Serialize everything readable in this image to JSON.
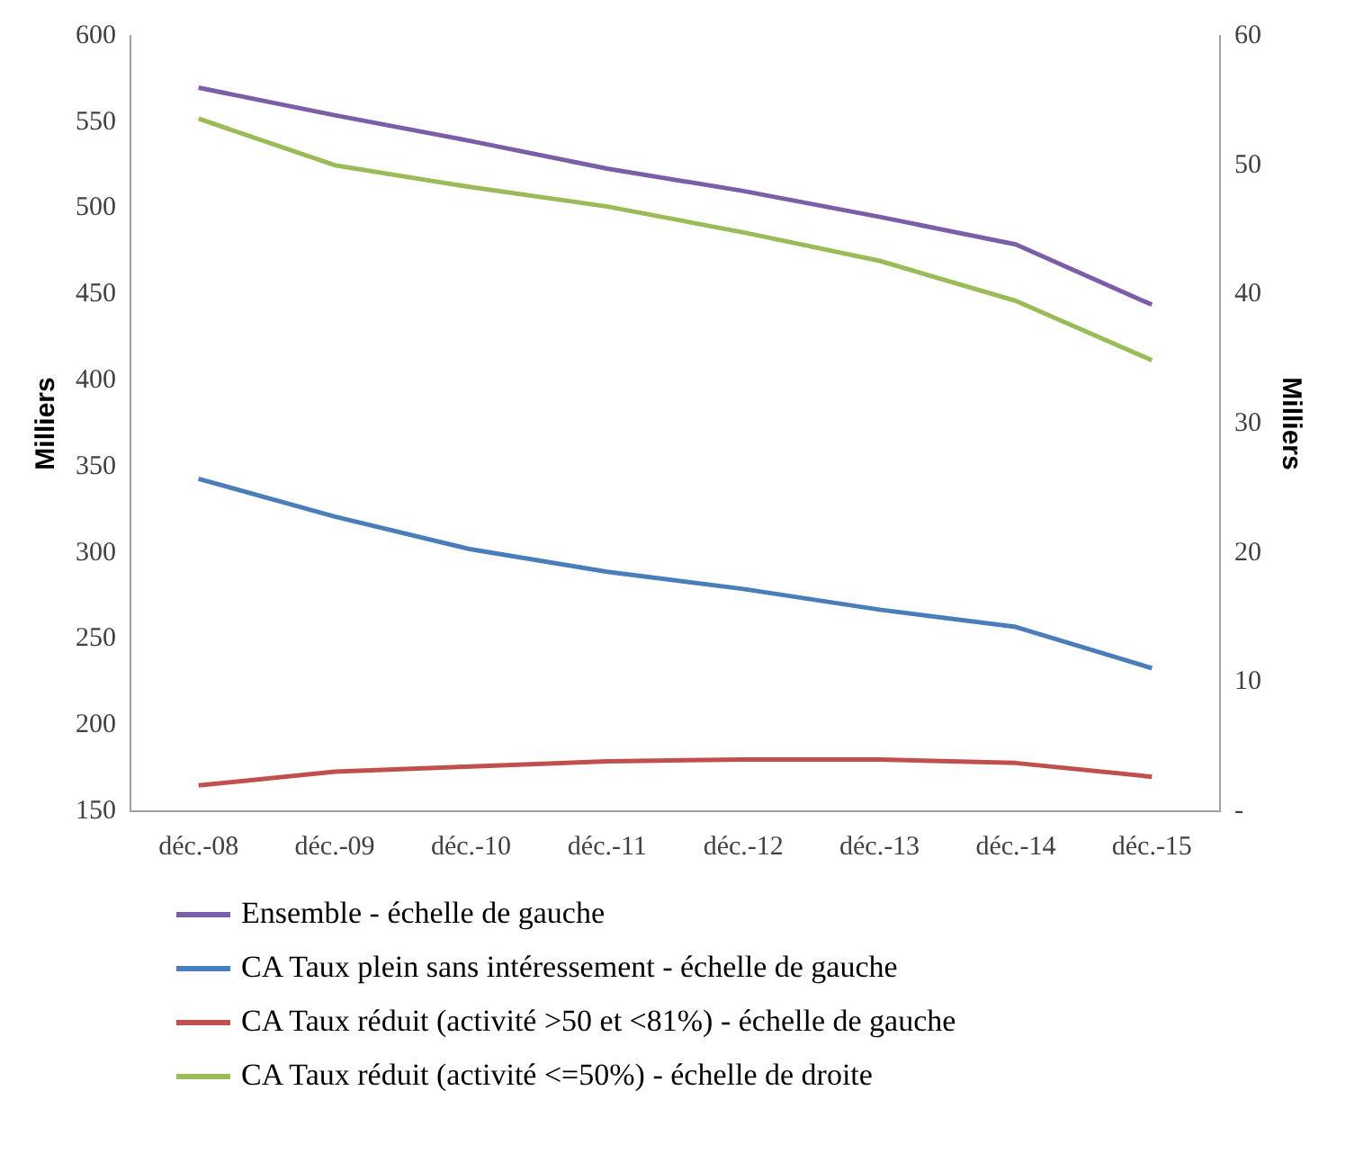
{
  "chart_data": {
    "type": "line",
    "ylabel": "Milliers",
    "y2label": "Milliers",
    "categories": [
      "déc.-08",
      "déc.-09",
      "déc.-10",
      "déc.-11",
      "déc.-12",
      "déc.-13",
      "déc.-14",
      "déc.-15"
    ],
    "series": [
      {
        "name": "Ensemble - échelle de gauche",
        "color": "#7b5ea7",
        "values": [
          570,
          554,
          539,
          523,
          510,
          495,
          479,
          444
        ]
      },
      {
        "name": "CA Taux plein sans intéressement - échelle de gauche",
        "color": "#4a7ebb",
        "values": [
          343,
          321,
          302,
          289,
          279,
          267,
          257,
          233
        ]
      },
      {
        "name": "CA Taux réduit (activité >50 et <81%) - échelle de gauche",
        "color": "#c0504d",
        "values": [
          165,
          173,
          176,
          179,
          180,
          180,
          178,
          170
        ]
      },
      {
        "name": "CA Taux réduit (activité <=50%) - échelle de droite",
        "color": "#9bbb59",
        "axis": "y2",
        "values": [
          53.6,
          50,
          48.3,
          46.8,
          44.8,
          42.6,
          39.5,
          34.9
        ]
      }
    ],
    "ylim": [
      150,
      600
    ],
    "yticks": [
      150,
      200,
      250,
      300,
      350,
      400,
      450,
      500,
      550,
      600
    ],
    "y2lim": [
      0,
      60
    ],
    "y2ticks": [
      {
        "value": 0,
        "label": "-"
      },
      10,
      20,
      30,
      40,
      50,
      60
    ],
    "grid": false,
    "legend": "bottom",
    "marker": "none",
    "line_style": "solid"
  }
}
